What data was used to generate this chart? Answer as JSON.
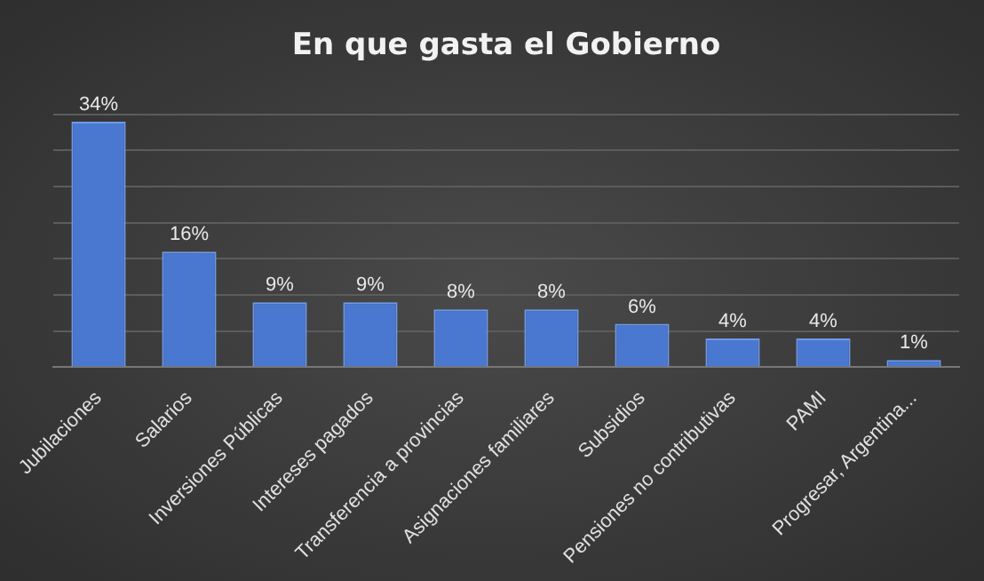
{
  "chart_data": {
    "type": "bar",
    "title": "En que gasta el Gobierno",
    "categories": [
      "Jubilaciones",
      "Salarios",
      "Inversiones Públicas",
      "Intereses pagados",
      "Transferencia a provincias",
      "Asignaciones familiares",
      "Subsidios",
      "Pensiones no contributivas",
      "PAMI",
      "Progresar, Argentina..."
    ],
    "values": [
      34,
      16,
      9,
      9,
      8,
      8,
      6,
      4,
      4,
      1
    ],
    "value_labels": [
      "34%",
      "16%",
      "9%",
      "9%",
      "8%",
      "8%",
      "6%",
      "4%",
      "4%",
      "1%"
    ],
    "color": "#4a78d0",
    "ylim": [
      0,
      35
    ],
    "yticks": [
      {
        "value": 0,
        "label": null
      },
      {
        "value": 5,
        "label": null
      },
      {
        "value": 10,
        "label": null
      },
      {
        "value": 15,
        "label": null
      },
      {
        "value": 20,
        "label": null
      },
      {
        "value": 25,
        "label": null
      },
      {
        "value": 30,
        "label": null
      },
      {
        "value": 35,
        "label": null
      }
    ],
    "grid": "y",
    "tick_labels": "x"
  }
}
